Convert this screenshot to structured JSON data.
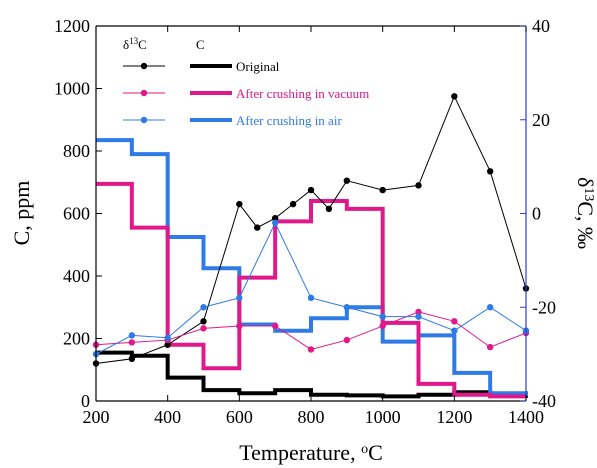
{
  "chart_data": {
    "type": "line",
    "title": "",
    "xlabel": "Temperature, ",
    "xlabel_sup": "o",
    "xlabel_tail": "C",
    "ylabel": "C, ppm",
    "y2label_prefix": "δ",
    "y2label_sup": "13",
    "y2label_tail": "C, ‰",
    "xlim": [
      200,
      1400
    ],
    "ylim": [
      0,
      1200
    ],
    "y2lim": [
      -40,
      40
    ],
    "x_ticks": [
      "200",
      "400",
      "600",
      "800",
      "1000",
      "1200",
      "1400"
    ],
    "y_ticks": [
      "0",
      "200",
      "400",
      "600",
      "800",
      "1000",
      "1200"
    ],
    "y2_ticks": [
      "-40",
      "-20",
      "0",
      "20",
      "40"
    ],
    "legend": {
      "head_delta": "δ",
      "head_delta_sup": "13",
      "head_delta_tail": "C",
      "head_c": "C",
      "placement": "top-left"
    },
    "series": [
      {
        "name": "Original",
        "color": "#000000",
        "step_edges": [
          200,
          300,
          400,
          500,
          600,
          700,
          800,
          900,
          1000,
          1100,
          1200,
          1300,
          1400
        ],
        "step_values": [
          155,
          145,
          75,
          35,
          25,
          35,
          20,
          18,
          15,
          20,
          28,
          20,
          10
        ],
        "delta_x": [
          200,
          300,
          400,
          500,
          600,
          650,
          700,
          750,
          800,
          850,
          900,
          1000,
          1100,
          1200,
          1300,
          1400
        ],
        "delta_y": [
          -32,
          -31,
          -28,
          -23,
          2,
          -3,
          -1,
          2,
          5,
          1,
          7,
          5,
          6,
          25,
          9,
          -16
        ]
      },
      {
        "name": "After crushing in vacuum",
        "color": "#e0188a",
        "step_edges": [
          200,
          300,
          400,
          500,
          600,
          700,
          800,
          900,
          1000,
          1100,
          1200,
          1300,
          1400
        ],
        "step_values": [
          695,
          555,
          180,
          105,
          395,
          575,
          640,
          615,
          250,
          55,
          20,
          15,
          15
        ],
        "delta_x": [
          200,
          300,
          400,
          500,
          600,
          700,
          800,
          900,
          1000,
          1100,
          1200,
          1300,
          1400
        ],
        "delta_y": [
          -28,
          -27.5,
          -27,
          -24.5,
          -24,
          -24,
          -29,
          -27,
          -24,
          -21,
          -23,
          -28.5,
          -25.5
        ]
      },
      {
        "name": "After crushing in air",
        "color": "#2e7ae6",
        "step_edges": [
          200,
          300,
          400,
          500,
          600,
          700,
          800,
          900,
          1000,
          1100,
          1200,
          1300,
          1400
        ],
        "step_values": [
          835,
          790,
          525,
          425,
          245,
          225,
          265,
          300,
          190,
          210,
          90,
          25,
          15
        ],
        "delta_x": [
          200,
          300,
          400,
          500,
          600,
          700,
          800,
          900,
          1000,
          1100,
          1200,
          1300,
          1400
        ],
        "delta_y": [
          -30,
          -26,
          -26.5,
          -20,
          -18,
          -2,
          -18,
          -20,
          -22,
          -22,
          -25,
          -20,
          -25
        ]
      }
    ]
  }
}
